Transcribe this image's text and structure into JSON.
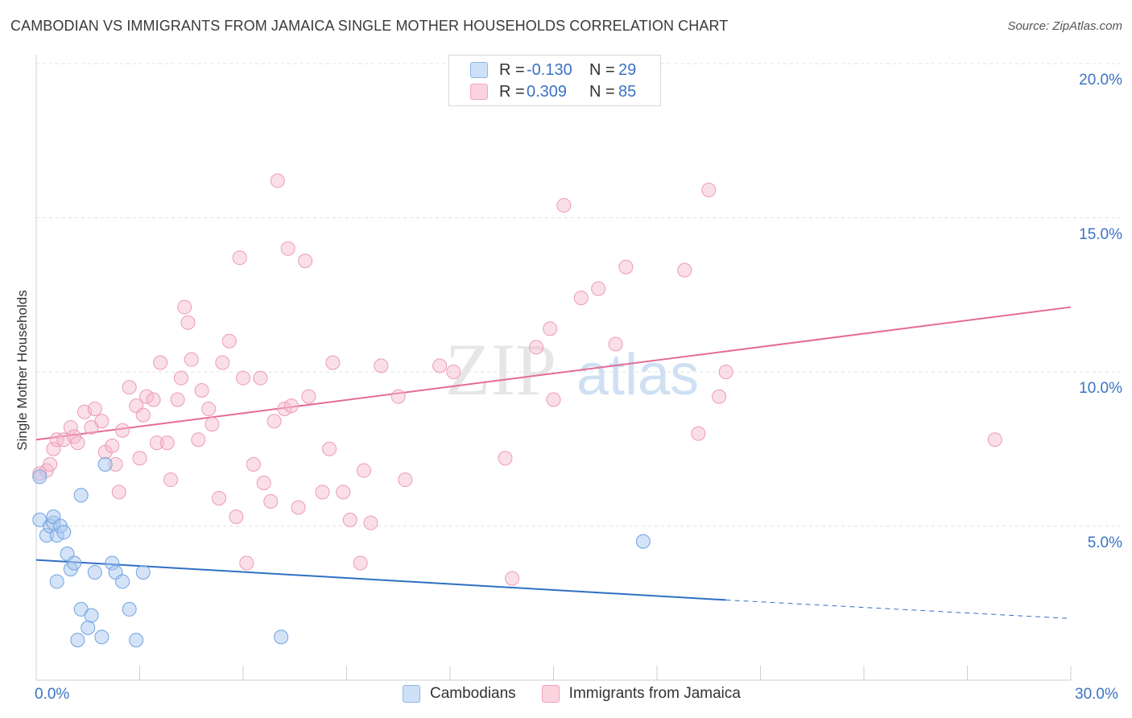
{
  "title": "CAMBODIAN VS IMMIGRANTS FROM JAMAICA SINGLE MOTHER HOUSEHOLDS CORRELATION CHART",
  "source": "Source: ZipAtlas.com",
  "watermark": {
    "zip": "ZIP",
    "atlas": "atlas"
  },
  "legend": {
    "rows": [
      {
        "r_label": "R =",
        "r_value": "-0.130",
        "n_label": "N =",
        "n_value": "29",
        "color": "#a9c8f0"
      },
      {
        "r_label": "R =",
        "r_value": "0.309",
        "n_label": "N =",
        "n_value": "85",
        "color": "#f6b8cb"
      }
    ]
  },
  "bottom_legend": {
    "series1": "Cambodians",
    "series2": "Immigrants from Jamaica"
  },
  "chart_data": {
    "type": "scatter",
    "xlabel": "",
    "ylabel": "Single Mother Households",
    "xlim": [
      0,
      30
    ],
    "ylim": [
      0,
      20
    ],
    "x_ticks_labels": {
      "min": "0.0%",
      "max": "30.0%"
    },
    "y_tick_labels": [
      "5.0%",
      "10.0%",
      "15.0%",
      "20.0%"
    ],
    "y_tick_values": [
      5,
      10,
      15,
      20
    ],
    "grid": true,
    "colors": {
      "cambodians": "#6fa3e0",
      "jamaica": "#ec8fae",
      "cam_line": "#2f6fc4",
      "jam_line": "#e46c95"
    },
    "series": [
      {
        "name": "Cambodians",
        "points": [
          [
            0.1,
            6.6
          ],
          [
            0.1,
            5.2
          ],
          [
            0.3,
            4.7
          ],
          [
            0.4,
            5.0
          ],
          [
            0.5,
            5.1
          ],
          [
            0.5,
            5.3
          ],
          [
            0.6,
            4.7
          ],
          [
            0.7,
            5.0
          ],
          [
            0.8,
            4.8
          ],
          [
            0.9,
            4.1
          ],
          [
            1.0,
            3.6
          ],
          [
            1.1,
            3.8
          ],
          [
            1.2,
            1.3
          ],
          [
            1.3,
            2.3
          ],
          [
            1.3,
            6.0
          ],
          [
            1.5,
            1.7
          ],
          [
            1.6,
            2.1
          ],
          [
            1.7,
            3.5
          ],
          [
            1.9,
            1.4
          ],
          [
            2.0,
            7.0
          ],
          [
            2.2,
            3.8
          ],
          [
            2.3,
            3.5
          ],
          [
            2.5,
            3.2
          ],
          [
            2.7,
            2.3
          ],
          [
            2.9,
            1.3
          ],
          [
            3.1,
            3.5
          ],
          [
            0.6,
            3.2
          ],
          [
            7.1,
            1.4
          ],
          [
            17.6,
            4.5
          ]
        ],
        "trend": {
          "x0": 0,
          "y0": 3.9,
          "x1": 20,
          "y1": 2.6,
          "dash_to_x": 30,
          "dash_to_y": 2.0
        }
      },
      {
        "name": "Immigrants from Jamaica",
        "points": [
          [
            0.1,
            6.7
          ],
          [
            0.3,
            6.8
          ],
          [
            0.4,
            7.0
          ],
          [
            0.5,
            7.5
          ],
          [
            0.6,
            7.8
          ],
          [
            0.8,
            7.8
          ],
          [
            1.0,
            8.2
          ],
          [
            1.1,
            7.9
          ],
          [
            1.2,
            7.7
          ],
          [
            1.4,
            8.7
          ],
          [
            1.6,
            8.2
          ],
          [
            1.7,
            8.8
          ],
          [
            1.9,
            8.4
          ],
          [
            2.0,
            7.4
          ],
          [
            2.2,
            7.6
          ],
          [
            2.3,
            7.0
          ],
          [
            2.4,
            6.1
          ],
          [
            2.5,
            8.1
          ],
          [
            2.7,
            9.5
          ],
          [
            2.9,
            8.9
          ],
          [
            3.0,
            7.2
          ],
          [
            3.1,
            8.6
          ],
          [
            3.2,
            9.2
          ],
          [
            3.4,
            9.1
          ],
          [
            3.5,
            7.7
          ],
          [
            3.6,
            10.3
          ],
          [
            3.8,
            7.7
          ],
          [
            3.9,
            6.5
          ],
          [
            4.1,
            9.1
          ],
          [
            4.2,
            9.8
          ],
          [
            4.3,
            12.1
          ],
          [
            4.4,
            11.6
          ],
          [
            4.5,
            10.4
          ],
          [
            4.7,
            7.8
          ],
          [
            4.8,
            9.4
          ],
          [
            5.0,
            8.8
          ],
          [
            5.1,
            8.3
          ],
          [
            5.3,
            5.9
          ],
          [
            5.4,
            10.3
          ],
          [
            5.6,
            11.0
          ],
          [
            5.8,
            5.3
          ],
          [
            5.9,
            13.7
          ],
          [
            6.0,
            9.8
          ],
          [
            6.1,
            3.8
          ],
          [
            6.3,
            7.0
          ],
          [
            6.5,
            9.8
          ],
          [
            6.6,
            6.4
          ],
          [
            6.8,
            5.8
          ],
          [
            6.9,
            8.4
          ],
          [
            7.0,
            16.2
          ],
          [
            7.2,
            8.8
          ],
          [
            7.3,
            14.0
          ],
          [
            7.4,
            8.9
          ],
          [
            7.6,
            5.6
          ],
          [
            7.8,
            13.6
          ],
          [
            7.9,
            9.2
          ],
          [
            8.3,
            6.1
          ],
          [
            8.5,
            7.5
          ],
          [
            8.6,
            10.3
          ],
          [
            8.9,
            6.1
          ],
          [
            9.1,
            5.2
          ],
          [
            9.4,
            3.8
          ],
          [
            9.5,
            6.8
          ],
          [
            9.7,
            5.1
          ],
          [
            10.0,
            10.2
          ],
          [
            10.5,
            9.2
          ],
          [
            10.7,
            6.5
          ],
          [
            11.7,
            10.2
          ],
          [
            12.1,
            10.0
          ],
          [
            13.6,
            7.2
          ],
          [
            13.8,
            3.3
          ],
          [
            14.5,
            10.8
          ],
          [
            14.9,
            11.4
          ],
          [
            15.0,
            9.1
          ],
          [
            15.3,
            15.4
          ],
          [
            15.8,
            12.4
          ],
          [
            16.3,
            12.7
          ],
          [
            16.8,
            10.9
          ],
          [
            17.1,
            13.4
          ],
          [
            18.8,
            13.3
          ],
          [
            19.2,
            8.0
          ],
          [
            19.5,
            15.9
          ],
          [
            19.8,
            9.2
          ],
          [
            27.8,
            7.8
          ],
          [
            20.0,
            10.0
          ]
        ],
        "trend": {
          "x0": 0,
          "y0": 7.8,
          "x1": 30,
          "y1": 12.1
        }
      }
    ]
  }
}
